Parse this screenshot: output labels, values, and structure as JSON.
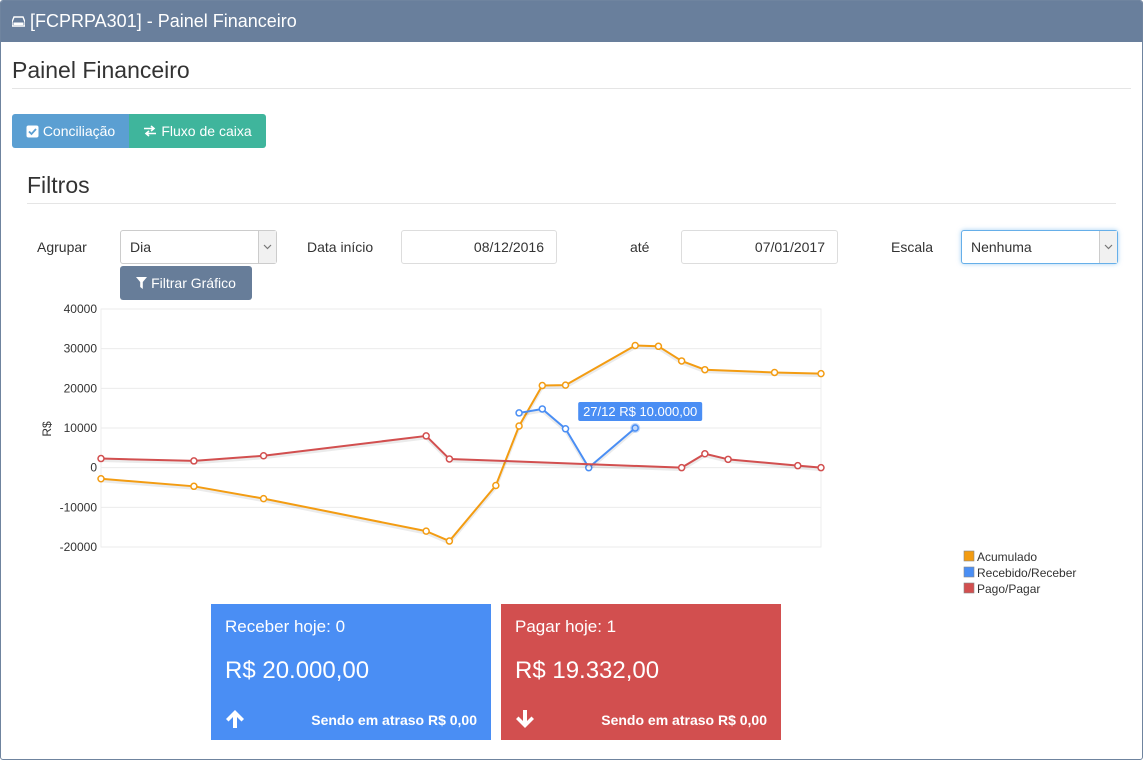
{
  "window": {
    "title": "[FCPRPA301] - Painel Financeiro"
  },
  "page": {
    "title": "Painel Financeiro"
  },
  "buttons": {
    "conciliacao": "Conciliação",
    "fluxo": "Fluxo de caixa",
    "filtrar": "Filtrar Gráfico"
  },
  "filters": {
    "heading": "Filtros",
    "agrupar_label": "Agrupar",
    "agrupar_value": "Dia",
    "data_inicio_label": "Data início",
    "data_inicio_value": "08/12/2016",
    "ate_label": "até",
    "data_fim_value": "07/01/2017",
    "escala_label": "Escala",
    "escala_value": "Nenhuma"
  },
  "chart_data": {
    "type": "line",
    "ylabel": "R$",
    "ylim": [
      -20000,
      40000
    ],
    "yticks": [
      40000,
      30000,
      20000,
      10000,
      0,
      -10000,
      -20000
    ],
    "legend_position": "bottom-right",
    "x_domain": [
      "08/12",
      "07/01"
    ],
    "series": [
      {
        "name": "Acumulado",
        "color": "#f39c12",
        "x": [
          "08/12",
          "12/12",
          "15/12",
          "22/12",
          "23/12",
          "25/12",
          "26/12",
          "27/12",
          "28/12",
          "31/12",
          "01/01",
          "02/01",
          "03/01",
          "06/01",
          "08/01"
        ],
        "values": [
          -2800,
          -4700,
          -7800,
          -16000,
          -18500,
          -4500,
          10500,
          20700,
          20800,
          30800,
          30600,
          26900,
          24700,
          24000,
          23700
        ]
      },
      {
        "name": "Recebido/Receber",
        "color": "#4a8ef4",
        "x": [
          "26/12",
          "27/12",
          "28/12",
          "29/12",
          "31/12"
        ],
        "values": [
          13800,
          14800,
          9800,
          0,
          10000
        ]
      },
      {
        "name": "Pago/Pagar",
        "color": "#d24f4f",
        "x": [
          "08/12",
          "12/12",
          "15/12",
          "22/12",
          "23/12",
          "02/01",
          "03/01",
          "04/01",
          "07/01",
          "08/01"
        ],
        "values": [
          2300,
          1700,
          3000,
          8000,
          2200,
          0,
          3500,
          2100,
          500,
          0
        ]
      }
    ],
    "tooltip": {
      "text": "27/12 R$ 10.000,00"
    }
  },
  "tiles": {
    "receber": {
      "title": "Receber hoje: 0",
      "value": "R$ 20.000,00",
      "late": "Sendo em atraso R$ 0,00",
      "color": "#4a8ef4"
    },
    "pagar": {
      "title": "Pagar hoje: 1",
      "value": "R$ 19.332,00",
      "late": "Sendo em atraso R$ 0,00",
      "color": "#d24f4f"
    }
  },
  "icons": {
    "window": "drive-icon",
    "conciliacao": "check-square-icon",
    "fluxo": "exchange-icon",
    "filtrar": "filter-icon",
    "receber": "arrow-up-icon",
    "pagar": "arrow-down-icon"
  }
}
